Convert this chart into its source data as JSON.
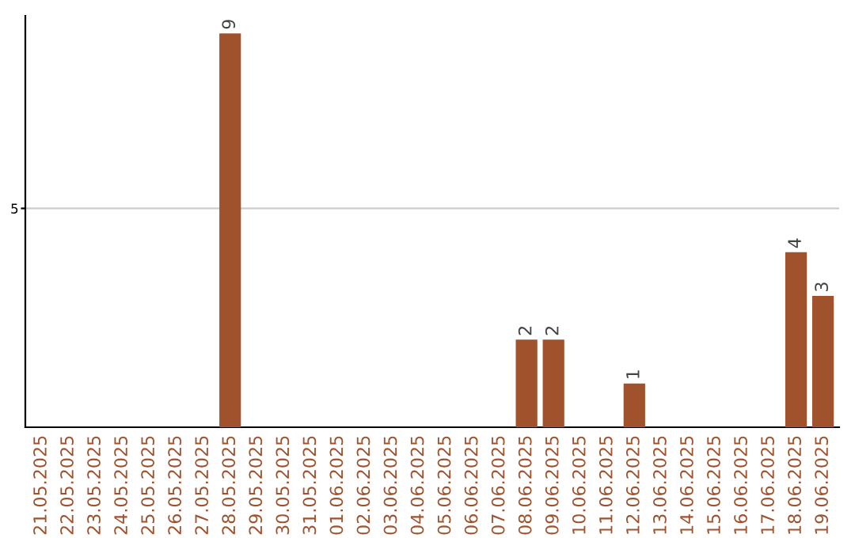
{
  "chart_data": {
    "type": "bar",
    "categories": [
      "21.05.2025",
      "22.05.2025",
      "23.05.2025",
      "24.05.2025",
      "25.05.2025",
      "26.05.2025",
      "27.05.2025",
      "28.05.2025",
      "29.05.2025",
      "30.05.2025",
      "31.05.2025",
      "01.06.2025",
      "02.06.2025",
      "03.06.2025",
      "04.06.2025",
      "05.06.2025",
      "06.06.2025",
      "07.06.2025",
      "08.06.2025",
      "09.06.2025",
      "10.06.2025",
      "11.06.2025",
      "12.06.2025",
      "13.06.2025",
      "14.06.2025",
      "15.06.2025",
      "16.06.2025",
      "17.06.2025",
      "18.06.2025",
      "19.06.2025"
    ],
    "values": [
      0,
      0,
      0,
      0,
      0,
      0,
      0,
      9,
      0,
      0,
      0,
      0,
      0,
      0,
      0,
      0,
      0,
      0,
      2,
      2,
      0,
      0,
      1,
      0,
      0,
      0,
      0,
      0,
      4,
      3
    ],
    "color": "#a0522d",
    "ylim": [
      0,
      9.4
    ],
    "yticks": [
      5
    ],
    "grid": "y",
    "value_labels": [
      null,
      null,
      null,
      null,
      null,
      null,
      null,
      "9",
      null,
      null,
      null,
      null,
      null,
      null,
      null,
      null,
      null,
      null,
      "2",
      "2",
      null,
      null,
      "1",
      null,
      null,
      null,
      null,
      null,
      "4",
      "3"
    ]
  }
}
